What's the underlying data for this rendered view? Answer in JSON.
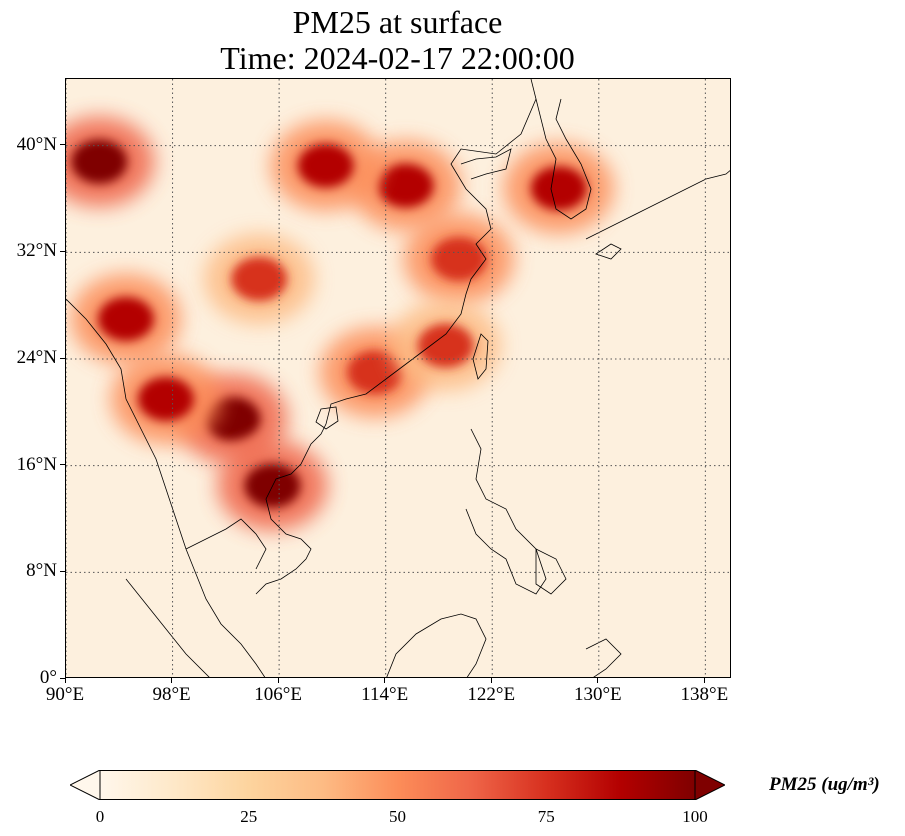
{
  "title": {
    "line1": "PM25 at surface",
    "line2": "Time: 2024-02-17 22:00:00"
  },
  "map": {
    "extent": {
      "lon_min": 90,
      "lon_max": 140,
      "lat_min": 0,
      "lat_max": 45
    },
    "lon_ticks": [
      {
        "value": 90,
        "label": "90°E"
      },
      {
        "value": 98,
        "label": "98°E"
      },
      {
        "value": 106,
        "label": "106°E"
      },
      {
        "value": 114,
        "label": "114°E"
      },
      {
        "value": 122,
        "label": "122°E"
      },
      {
        "value": 130,
        "label": "130°E"
      },
      {
        "value": 138,
        "label": "138°E"
      }
    ],
    "lat_ticks": [
      {
        "value": 0,
        "label": "0°"
      },
      {
        "value": 8,
        "label": "8°N"
      },
      {
        "value": 16,
        "label": "16°N"
      },
      {
        "value": 24,
        "label": "24°N"
      },
      {
        "value": 32,
        "label": "32°N"
      },
      {
        "value": 40,
        "label": "40°N"
      }
    ],
    "gridlines": true,
    "colormap": "OrRd",
    "field_hotspots": [
      {
        "name": "Northwest desert plume",
        "lon": 92.5,
        "lat": 38.8,
        "value": 95
      },
      {
        "name": "North China Plain",
        "lon": 115.5,
        "lat": 37.0,
        "value": 90
      },
      {
        "name": "Northern plume",
        "lon": 109.5,
        "lat": 38.5,
        "value": 85
      },
      {
        "name": "Sichuan Basin",
        "lon": 104.5,
        "lat": 30.0,
        "value": 70
      },
      {
        "name": "Yangtze Delta",
        "lon": 119.5,
        "lat": 31.5,
        "value": 75
      },
      {
        "name": "Northeast India / Myanmar",
        "lon": 94.5,
        "lat": 27.0,
        "value": 85
      },
      {
        "name": "Northern Thailand / Laos",
        "lon": 102.5,
        "lat": 19.5,
        "value": 100
      },
      {
        "name": "Cambodia / Southern Laos",
        "lon": 105.5,
        "lat": 14.5,
        "value": 100
      },
      {
        "name": "Myanmar central",
        "lon": 97.5,
        "lat": 21.0,
        "value": 90
      },
      {
        "name": "Korea",
        "lon": 127.0,
        "lat": 36.8,
        "value": 90
      },
      {
        "name": "Pearl River Delta",
        "lon": 113.2,
        "lat": 23.0,
        "value": 80
      },
      {
        "name": "Taiwan strait coast",
        "lon": 118.5,
        "lat": 25.0,
        "value": 70
      }
    ]
  },
  "colorbar": {
    "min": 0,
    "max": 100,
    "extend": "both",
    "ticks": [
      {
        "value": 0,
        "label": "0"
      },
      {
        "value": 25,
        "label": "25"
      },
      {
        "value": 50,
        "label": "50"
      },
      {
        "value": 75,
        "label": "75"
      },
      {
        "value": 100,
        "label": "100"
      }
    ],
    "label": "PM25 (ug/m³)",
    "colors": [
      "#fff7ec",
      "#fee8c8",
      "#fdd49e",
      "#fdbb84",
      "#fc8d59",
      "#ef6548",
      "#d7301f",
      "#b30000",
      "#7f0000"
    ]
  }
}
